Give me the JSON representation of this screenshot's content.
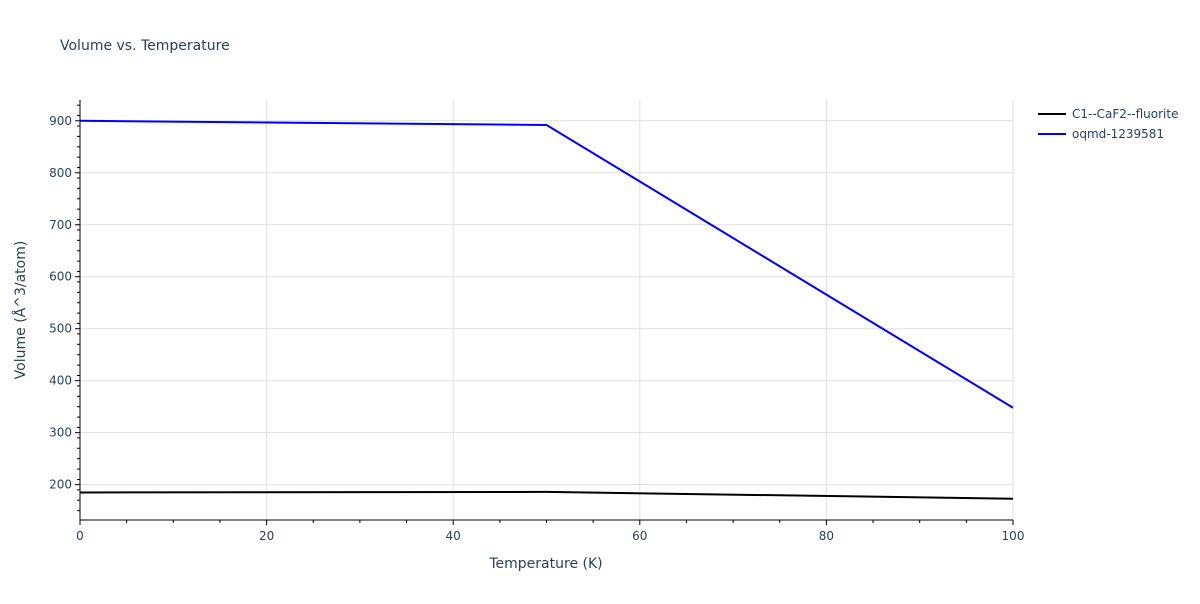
{
  "chart_data": {
    "type": "line",
    "title": "Volume vs. Temperature",
    "xlabel": "Temperature (K)",
    "ylabel": "Volume (Å^3/atom)",
    "xlim": [
      0,
      100
    ],
    "ylim": [
      132,
      940
    ],
    "x_ticks": [
      0,
      20,
      40,
      60,
      80,
      100
    ],
    "y_ticks": [
      200,
      300,
      400,
      500,
      600,
      700,
      800,
      900
    ],
    "grid": true,
    "legend_position": "top-right",
    "series": [
      {
        "name": "C1--CaF2--fluorite",
        "color": "#000000",
        "x": [
          0,
          50,
          100
        ],
        "y": [
          185,
          186,
          173
        ]
      },
      {
        "name": "oqmd-1239581",
        "color": "#0000ff",
        "x": [
          0,
          50,
          100
        ],
        "y": [
          900,
          892,
          348
        ]
      }
    ]
  }
}
